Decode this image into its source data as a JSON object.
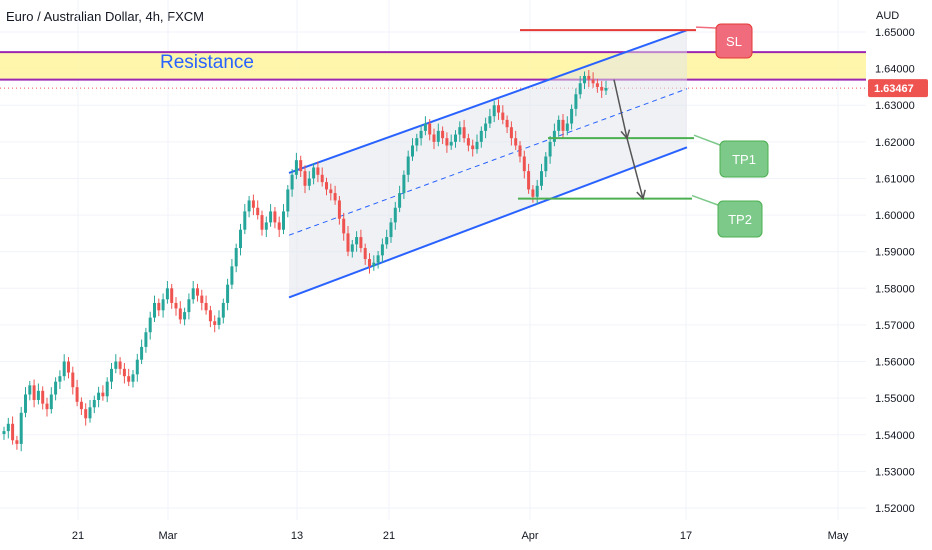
{
  "header": {
    "title": "Euro / Australian Dollar, 4h, FXCM"
  },
  "chart_data": {
    "type": "candlestick",
    "symbol": "Euro / Australian Dollar",
    "timeframe": "4h",
    "source": "FXCM",
    "currency": "AUD",
    "y_axis": {
      "unit": "AUD",
      "ticks": [
        "1.65000",
        "1.64000",
        "1.63000",
        "1.62000",
        "1.61000",
        "1.60000",
        "1.59000",
        "1.58000",
        "1.57000",
        "1.56000",
        "1.55000",
        "1.54000",
        "1.53000",
        "1.52000"
      ],
      "range": [
        1.5165,
        1.6525
      ]
    },
    "x_axis": {
      "ticks": [
        "21",
        "Mar",
        "13",
        "21",
        "Apr",
        "17",
        "May"
      ]
    },
    "last_price": "1.63467",
    "colors": {
      "up": "#26a69a",
      "down": "#ef5350",
      "channel": "#2962ff",
      "resistance_fill": "#fff59d",
      "resistance_line": "#9c27b0",
      "sl": "#e53935",
      "tp": "#4caf50",
      "price_tag": "#ef5350"
    },
    "resistance_zone": {
      "label": "Resistance",
      "low": 1.637,
      "high": 1.6445
    },
    "levels": [
      {
        "label": "SL",
        "price": 1.6505,
        "color": "#e53935"
      },
      {
        "label": "TP1",
        "price": 1.621,
        "color": "#4caf50"
      },
      {
        "label": "TP2",
        "price": 1.6045,
        "color": "#4caf50"
      }
    ],
    "channel": {
      "upper": [
        [
          289,
          1.6115
        ],
        [
          687,
          1.6505
        ]
      ],
      "middle": [
        [
          289,
          1.5945
        ],
        [
          687,
          1.6345
        ]
      ],
      "lower": [
        [
          289,
          1.5775
        ],
        [
          687,
          1.6185
        ]
      ]
    },
    "projection_arrows": [
      {
        "from": [
          614,
          1.637
        ],
        "to": [
          627,
          1.621
        ]
      },
      {
        "from": [
          627,
          1.621
        ],
        "to": [
          643,
          1.6045
        ]
      }
    ],
    "series_closes": [
      1.541,
      1.543,
      1.5385,
      1.5375,
      1.546,
      1.551,
      1.5535,
      1.5495,
      1.552,
      1.5485,
      1.547,
      1.551,
      1.5545,
      1.556,
      1.56,
      1.557,
      1.553,
      1.549,
      1.547,
      1.5445,
      1.5475,
      1.5495,
      1.5515,
      1.5505,
      1.5545,
      1.558,
      1.56,
      1.558,
      1.556,
      1.5545,
      1.5565,
      1.5605,
      1.564,
      1.568,
      1.572,
      1.576,
      1.574,
      1.577,
      1.58,
      1.576,
      1.5745,
      1.5715,
      1.5735,
      1.577,
      1.58,
      1.578,
      1.576,
      1.574,
      1.571,
      1.57,
      1.572,
      1.576,
      1.581,
      1.586,
      1.591,
      1.596,
      1.601,
      1.604,
      1.602,
      1.6,
      1.596,
      1.598,
      1.601,
      1.598,
      1.596,
      1.601,
      1.607,
      1.611,
      1.615,
      1.612,
      1.608,
      1.61,
      1.613,
      1.611,
      1.609,
      1.607,
      1.606,
      1.604,
      1.599,
      1.595,
      1.59,
      1.592,
      1.594,
      1.591,
      1.588,
      1.586,
      1.587,
      1.589,
      1.592,
      1.594,
      1.598,
      1.602,
      1.606,
      1.611,
      1.616,
      1.619,
      1.621,
      1.623,
      1.625,
      1.622,
      1.62,
      1.623,
      1.621,
      1.619,
      1.62,
      1.622,
      1.624,
      1.621,
      1.619,
      1.618,
      1.62,
      1.623,
      1.625,
      1.627,
      1.63,
      1.628,
      1.626,
      1.624,
      1.621,
      1.619,
      1.616,
      1.612,
      1.607,
      1.605,
      1.608,
      1.612,
      1.616,
      1.62,
      1.623,
      1.626,
      1.623,
      1.625,
      1.629,
      1.633,
      1.636,
      1.638,
      1.637,
      1.636,
      1.635,
      1.634,
      1.6347
    ]
  },
  "price_axis": {
    "currency_label": "AUD",
    "last_price_label": "1.63467"
  }
}
